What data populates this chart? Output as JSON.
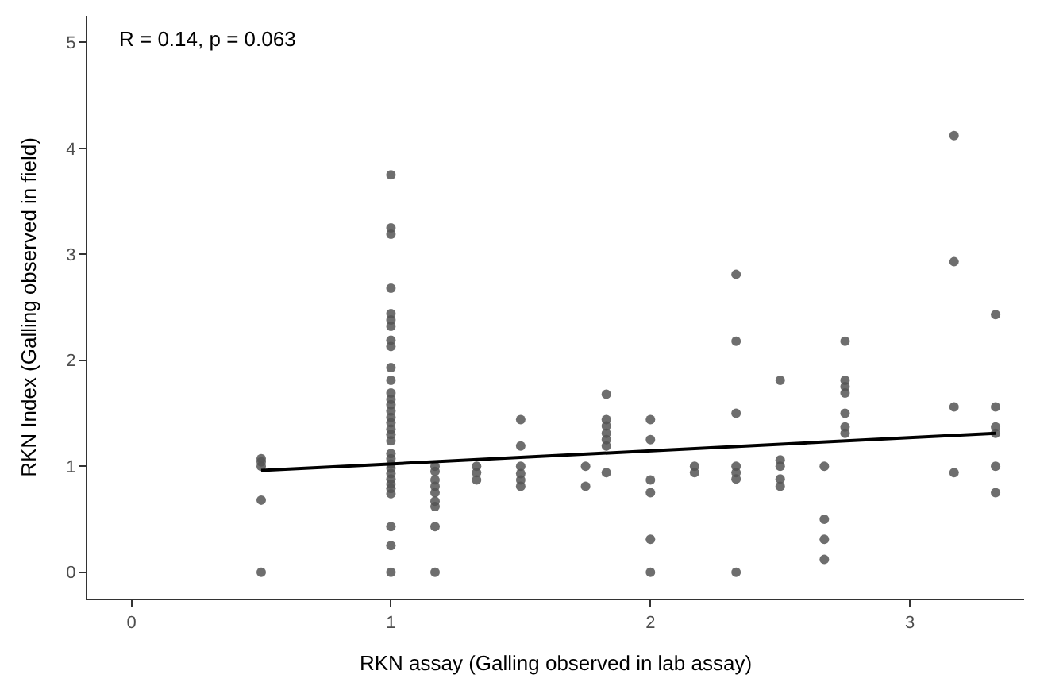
{
  "chart_data": {
    "type": "scatter",
    "xlabel": "RKN assay (Galling observed in lab assay)",
    "ylabel": "RKN Index (Galling observed in field)",
    "annotations": [
      "R = 0.14, p = 0.063"
    ],
    "xlim": [
      -0.17,
      3.44
    ],
    "ylim": [
      -0.25,
      5.25
    ],
    "xticks": [
      0,
      1,
      2,
      3
    ],
    "yticks": [
      0,
      1,
      2,
      3,
      4,
      5
    ],
    "marker": "circle",
    "series": [
      {
        "color": "#555555",
        "x": [
          0.5,
          0.5,
          0.5,
          0.5,
          0.5,
          1,
          1,
          1,
          1,
          1,
          1,
          1,
          1,
          1,
          1,
          1,
          1,
          1,
          1,
          1,
          1,
          1,
          1,
          1,
          1,
          1,
          1,
          1,
          1,
          1,
          1,
          1,
          1,
          1,
          1,
          1,
          1,
          1.17,
          1.17,
          1.17,
          1.17,
          1.17,
          1.17,
          1.17,
          1.17,
          1.17,
          1.33,
          1.33,
          1.33,
          1.5,
          1.5,
          1.5,
          1.5,
          1.5,
          1.5,
          1.75,
          1.75,
          1.83,
          1.83,
          1.83,
          1.83,
          1.83,
          1.83,
          1.83,
          2,
          2,
          2,
          2,
          2,
          2,
          2.17,
          2.17,
          2.33,
          2.33,
          2.33,
          2.33,
          2.33,
          2.33,
          2.33,
          2.5,
          2.5,
          2.5,
          2.5,
          2.5,
          2.67,
          2.67,
          2.67,
          2.67,
          2.75,
          2.75,
          2.75,
          2.75,
          2.75,
          2.75,
          2.75,
          3.17,
          3.17,
          3.17,
          3.17,
          3.33,
          3.33,
          3.33,
          3.33,
          3.33,
          3.33
        ],
        "values": [
          1.07,
          1.04,
          1.0,
          0.68,
          0,
          3.75,
          3.25,
          3.19,
          2.68,
          2.44,
          2.38,
          2.32,
          2.19,
          2.13,
          1.93,
          1.81,
          1.69,
          1.63,
          1.58,
          1.52,
          1.46,
          1.41,
          1.35,
          1.3,
          1.24,
          1.12,
          1.07,
          1.02,
          0.98,
          0.93,
          0.88,
          0.83,
          0.79,
          0.74,
          0.43,
          0.25,
          0,
          1.0,
          0.95,
          0.87,
          0.81,
          0.75,
          0.67,
          0.62,
          0.43,
          0,
          1.0,
          0.94,
          0.87,
          1.44,
          1.19,
          1.0,
          0.93,
          0.87,
          0.81,
          1.0,
          0.81,
          1.68,
          1.44,
          1.38,
          1.31,
          1.25,
          1.19,
          0.94,
          1.44,
          1.25,
          0.87,
          0.75,
          0.31,
          0,
          1.0,
          0.94,
          2.81,
          2.18,
          1.5,
          1.0,
          0.94,
          0.88,
          0,
          1.81,
          1.06,
          1.0,
          0.88,
          0.81,
          1.0,
          0.5,
          0.31,
          0.12,
          2.18,
          1.81,
          1.75,
          1.69,
          1.5,
          1.37,
          1.31,
          4.12,
          2.93,
          1.56,
          0.94,
          2.43,
          1.56,
          1.37,
          1.31,
          1.0,
          0.75
        ]
      },
      {
        "type": "line",
        "marker": "none",
        "color": "#000000",
        "x": [
          0.5,
          3.33
        ],
        "values": [
          0.96,
          1.31
        ]
      }
    ]
  }
}
